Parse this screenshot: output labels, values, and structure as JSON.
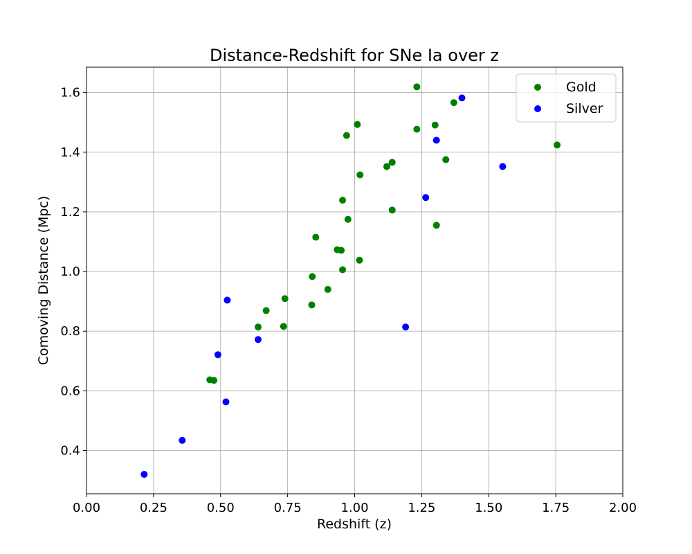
{
  "chart_data": {
    "type": "scatter",
    "title": "Distance-Redshift for SNe Ia over z",
    "xlabel": "Redshift (z)",
    "ylabel": "Comoving Distance (Mpc)",
    "xlim": [
      0.0,
      2.0
    ],
    "ylim": [
      0.255,
      1.685
    ],
    "xticks": [
      0.0,
      0.25,
      0.5,
      0.75,
      1.0,
      1.25,
      1.5,
      1.75,
      2.0
    ],
    "xtick_labels": [
      "0.00",
      "0.25",
      "0.50",
      "0.75",
      "1.00",
      "1.25",
      "1.50",
      "1.75",
      "2.00"
    ],
    "yticks": [
      0.4,
      0.6,
      0.8,
      1.0,
      1.2,
      1.4,
      1.6
    ],
    "ytick_labels": [
      "0.4",
      "0.6",
      "0.8",
      "1.0",
      "1.2",
      "1.4",
      "1.6"
    ],
    "grid": true,
    "legend_position": "top-right",
    "series": [
      {
        "name": "Gold",
        "color": "#008000",
        "points": [
          {
            "x": 0.46,
            "y": 0.637
          },
          {
            "x": 0.475,
            "y": 0.635
          },
          {
            "x": 0.64,
            "y": 0.814
          },
          {
            "x": 0.67,
            "y": 0.869
          },
          {
            "x": 0.735,
            "y": 0.816
          },
          {
            "x": 0.74,
            "y": 0.909
          },
          {
            "x": 0.84,
            "y": 0.888
          },
          {
            "x": 0.842,
            "y": 0.983
          },
          {
            "x": 0.855,
            "y": 1.115
          },
          {
            "x": 0.9,
            "y": 0.94
          },
          {
            "x": 0.935,
            "y": 1.073
          },
          {
            "x": 0.95,
            "y": 1.071
          },
          {
            "x": 0.955,
            "y": 1.006
          },
          {
            "x": 0.955,
            "y": 1.239
          },
          {
            "x": 0.97,
            "y": 1.456
          },
          {
            "x": 0.975,
            "y": 1.175
          },
          {
            "x": 1.01,
            "y": 1.493
          },
          {
            "x": 1.018,
            "y": 1.038
          },
          {
            "x": 1.02,
            "y": 1.324
          },
          {
            "x": 1.12,
            "y": 1.352
          },
          {
            "x": 1.14,
            "y": 1.366
          },
          {
            "x": 1.14,
            "y": 1.206
          },
          {
            "x": 1.232,
            "y": 1.619
          },
          {
            "x": 1.232,
            "y": 1.477
          },
          {
            "x": 1.3,
            "y": 1.491
          },
          {
            "x": 1.305,
            "y": 1.155
          },
          {
            "x": 1.34,
            "y": 1.375
          },
          {
            "x": 1.37,
            "y": 1.566
          },
          {
            "x": 1.755,
            "y": 1.424
          }
        ]
      },
      {
        "name": "Silver",
        "color": "#0000ff",
        "points": [
          {
            "x": 0.215,
            "y": 0.32
          },
          {
            "x": 0.357,
            "y": 0.434
          },
          {
            "x": 0.49,
            "y": 0.721
          },
          {
            "x": 0.52,
            "y": 0.563
          },
          {
            "x": 0.525,
            "y": 0.904
          },
          {
            "x": 0.64,
            "y": 0.772
          },
          {
            "x": 1.19,
            "y": 0.814
          },
          {
            "x": 1.265,
            "y": 1.248
          },
          {
            "x": 1.305,
            "y": 1.44
          },
          {
            "x": 1.4,
            "y": 1.582
          },
          {
            "x": 1.552,
            "y": 1.352
          }
        ]
      }
    ]
  }
}
